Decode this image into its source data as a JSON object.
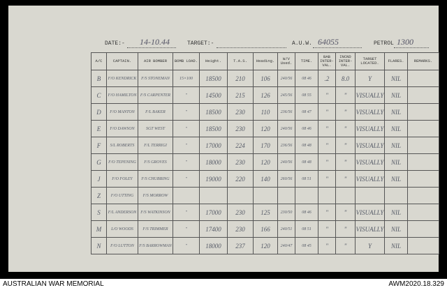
{
  "header": {
    "date_label": "DATE:-",
    "date": "14-10.44",
    "target_label": "TARGET:-",
    "auw_label": "A.U.W.",
    "auw": "64055",
    "petrol_label": "PETROL",
    "petrol": "1300"
  },
  "table": {
    "columns": [
      "A/C",
      "CAPTAIN.",
      "AIR BOMBER",
      "BOMB LOAD.",
      "Height.",
      "T.A.S.",
      "Heading.",
      "W/V Used.",
      "TIME.",
      "BAB INTER-VAL.",
      "INCND INTER-VAL.",
      "TARGET LOCATED.",
      "FLARES.",
      "REMARKS."
    ],
    "rows": [
      [
        "B",
        "F/O KENDRICK",
        "F/S STONEMAN",
        "15×100",
        "18500",
        "210",
        "106",
        "240/56",
        "08 46",
        ".2",
        "8.0",
        "Y",
        "NIL",
        null
      ],
      [
        "C",
        "F/O HAMILTON",
        "F/S CARPENTER",
        "\"",
        "14500",
        "215",
        "126",
        "245/56",
        "08 55",
        "\"",
        "\"",
        "VISUALLY",
        "NIL",
        null
      ],
      [
        "D",
        "F/O MANTON",
        "F/L BAKER",
        "\"",
        "18500",
        "230",
        "110",
        "236/56",
        "08 47",
        "\"",
        "\"",
        "VISUALLY",
        "NIL",
        null
      ],
      [
        "E",
        "F/O DAWSON",
        "SGT WEST",
        "\"",
        "18500",
        "230",
        "120",
        "240/56",
        "08 46",
        "\"",
        "\"",
        "VISUALLY",
        "NIL",
        null
      ],
      [
        "F",
        "S/L ROBERTS",
        "F/L TERRIGI",
        "\"",
        "17000",
        "224",
        "170",
        "236/56",
        "08 48",
        "\"",
        "\"",
        "VISUALLY",
        "NIL",
        null
      ],
      [
        "G",
        "F/O TEPENING",
        "F/S GROVES",
        "\"",
        "18000",
        "230",
        "120",
        "240/56",
        "08 48",
        "\"",
        "\"",
        "VISUALLY",
        "NIL",
        null
      ],
      [
        "J",
        "F/O FOLEY",
        "F/S CHUBBING",
        "\"",
        "19000",
        "220",
        "140",
        "260/56",
        "08 51",
        "\"",
        "\"",
        "VISUALLY",
        "NIL",
        null
      ],
      [
        "Z",
        "F/O UTTING",
        "F/S MORROW",
        null,
        null,
        null,
        null,
        null,
        null,
        null,
        null,
        null,
        null,
        null
      ],
      [
        "S",
        "F/L ANDERSON",
        "F/S WATKINSON",
        "\"",
        "17000",
        "230",
        "125",
        "230/50",
        "08 46",
        "\"",
        "\"",
        "VISUALLY",
        "NIL",
        null
      ],
      [
        "M",
        "L/O WOODS",
        "F/S TRIMMER",
        "\"",
        "17400",
        "230",
        "166",
        "240/51",
        "08 51",
        "\"",
        "\"",
        "VISUALLY",
        "NIL",
        null
      ],
      [
        "N",
        "F/O LUTTON",
        "F/S BARROWMAN",
        "\"",
        "18000",
        "237",
        "120",
        "240/47",
        "08 45",
        "\"",
        "\"",
        "Y",
        "NIL",
        null
      ]
    ]
  },
  "footer": {
    "left": "AUSTRALIAN WAR MEMORIAL",
    "right": "AWM2020.18.329"
  }
}
